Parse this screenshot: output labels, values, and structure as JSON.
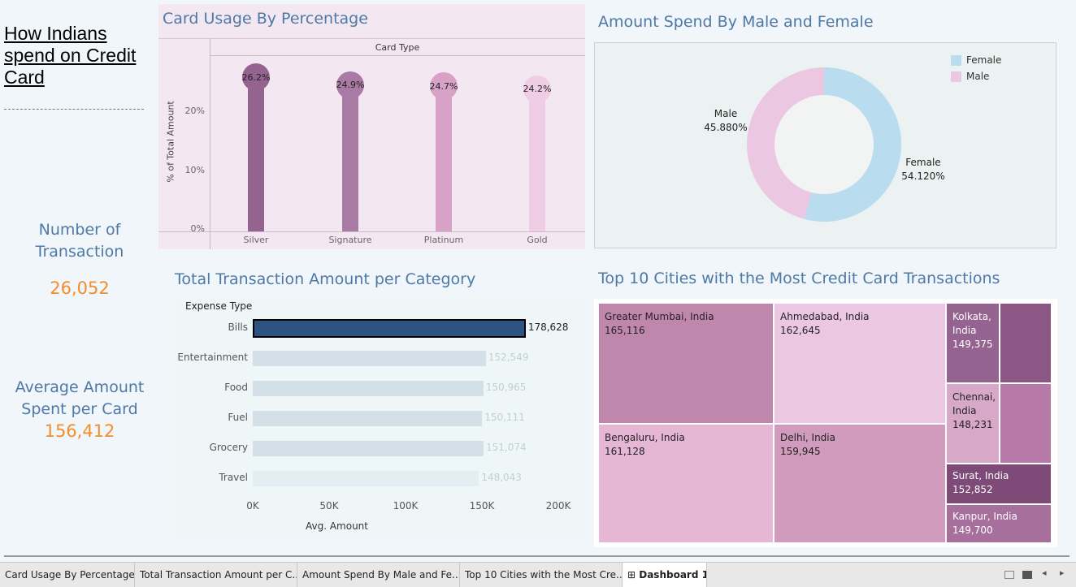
{
  "title": "How Indians spend on Credit Card",
  "kpis": {
    "transactions_label": "Number of Transaction",
    "transactions_value": "26,052",
    "avg_label": "Average Amount Spent per Card",
    "avg_value": "156,412"
  },
  "card_usage": {
    "title": "Card Usage By Percentage",
    "header": "Card Type",
    "ylabel": "% of Total Amount",
    "yticks": [
      "0%",
      "10%",
      "20%"
    ],
    "chart_data": {
      "type": "bar",
      "categories": [
        "Silver",
        "Signature",
        "Platinum",
        "Gold"
      ],
      "values": [
        26.2,
        24.9,
        24.7,
        24.2
      ],
      "labels": [
        "26.2%",
        "24.9%",
        "24.7%",
        "24.2%"
      ],
      "ylim": [
        0,
        30
      ],
      "colors": [
        "#956390",
        "#a97aa4",
        "#d8a2c8",
        "#efcde5"
      ]
    }
  },
  "gender": {
    "title": "Amount Spend By Male and Female",
    "legend": [
      {
        "name": "Female",
        "color": "#b9dcef"
      },
      {
        "name": "Male",
        "color": "#ecc7e2"
      }
    ],
    "male_label": "Male",
    "male_value": "45.880%",
    "female_label": "Female",
    "female_value": "54.120%",
    "chart_data": {
      "type": "pie",
      "categories": [
        "Female",
        "Male"
      ],
      "values": [
        54.12,
        45.88
      ]
    }
  },
  "category": {
    "title": "Total Transaction Amount per Category",
    "header": "Expense Type",
    "xlabel": "Avg. Amount",
    "xticks": [
      "0K",
      "50K",
      "100K",
      "150K",
      "200K"
    ],
    "chart_data": {
      "type": "bar",
      "categories": [
        "Bills",
        "Entertainment",
        "Food",
        "Fuel",
        "Grocery",
        "Travel"
      ],
      "values": [
        178628,
        152549,
        150965,
        150111,
        151074,
        148043
      ],
      "labels": [
        "178,628",
        "152,549",
        "150,965",
        "150,111",
        "151,074",
        "148,043"
      ],
      "xlim": [
        0,
        200000
      ],
      "highlight": "Bills"
    }
  },
  "cities": {
    "title": "Top 10 Cities with the Most Credit Card Transactions",
    "chart_data": {
      "type": "treemap",
      "items": [
        {
          "name": "Greater Mumbai, India",
          "value": "165,116",
          "color": "#c087ad"
        },
        {
          "name": "Ahmedabad, India",
          "value": "162,645",
          "color": "#ecc7e2"
        },
        {
          "name": "Bengaluru, India",
          "value": "161,128",
          "color": "#e6b6d5"
        },
        {
          "name": "Delhi, India",
          "value": "159,945",
          "color": "#d09bbd"
        },
        {
          "name": "Kolkata, India",
          "value": "149,375",
          "color": "#956390"
        },
        {
          "name": "Chennai, India",
          "value": "148,231",
          "color": "#d8a8c8"
        },
        {
          "name": "Surat, India",
          "value": "152,852",
          "color": "#7e4a77"
        },
        {
          "name": "Kanpur, India",
          "value": "149,700",
          "color": "#a66f9c"
        },
        {
          "name": "",
          "value": "",
          "color": "#8c5784"
        },
        {
          "name": "",
          "value": "",
          "color": "#b77aa8"
        }
      ]
    }
  },
  "tabs": [
    "Card Usage By Percentage",
    "Total Transaction Amount per C...",
    "Amount Spend By Male and Fe...",
    "Top 10 Cities with the Most Cre...",
    "Dashboard 1"
  ]
}
